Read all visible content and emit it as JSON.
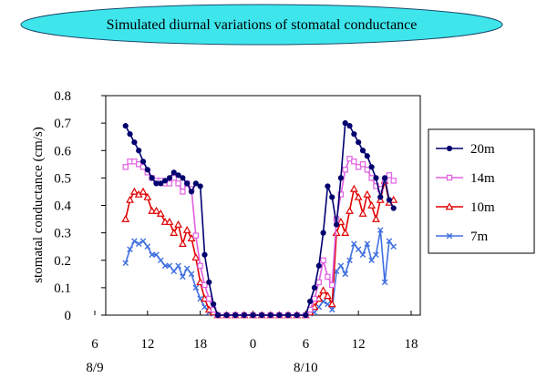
{
  "chart_data": {
    "type": "line",
    "title": "Simulated diurnal variations of stomatal conductance",
    "ylabel": "stomatal conductance  (cm/s)",
    "xlabel": "",
    "ylim": [
      0,
      0.8
    ],
    "yticks": [
      "0",
      "0.1",
      "0.2",
      "0.3",
      "0.4",
      "0.5",
      "0.6",
      "0.7",
      "0.8"
    ],
    "xlim": [
      6,
      42
    ],
    "xticks": [
      {
        "x": 6,
        "label": "6"
      },
      {
        "x": 12,
        "label": "12"
      },
      {
        "x": 18,
        "label": "18"
      },
      {
        "x": 24,
        "label": "0"
      },
      {
        "x": 30,
        "label": "6"
      },
      {
        "x": 36,
        "label": "12"
      },
      {
        "x": 42,
        "label": "18"
      }
    ],
    "date_labels": [
      {
        "x": 6,
        "label": "8/9"
      },
      {
        "x": 30,
        "label": "8/10"
      }
    ],
    "grid": false,
    "legend_position": "right",
    "series": [
      {
        "name": "20m",
        "color": "#00006e",
        "marker": "circle",
        "points": [
          [
            9.5,
            0.69
          ],
          [
            10,
            0.66
          ],
          [
            10.5,
            0.63
          ],
          [
            11,
            0.6
          ],
          [
            11.5,
            0.56
          ],
          [
            12,
            0.53
          ],
          [
            12.5,
            0.5
          ],
          [
            13,
            0.48
          ],
          [
            13.5,
            0.48
          ],
          [
            14,
            0.49
          ],
          [
            14.5,
            0.5
          ],
          [
            15,
            0.52
          ],
          [
            15.5,
            0.51
          ],
          [
            16,
            0.5
          ],
          [
            16.5,
            0.48
          ],
          [
            17,
            0.45
          ],
          [
            17.5,
            0.48
          ],
          [
            18,
            0.47
          ],
          [
            18.5,
            0.22
          ],
          [
            19,
            0.12
          ],
          [
            19.5,
            0.04
          ],
          [
            20,
            0
          ],
          [
            21,
            0
          ],
          [
            22,
            0
          ],
          [
            23,
            0
          ],
          [
            24,
            0
          ],
          [
            25,
            0
          ],
          [
            26,
            0
          ],
          [
            27,
            0
          ],
          [
            28,
            0
          ],
          [
            29,
            0
          ],
          [
            30,
            0
          ],
          [
            30.5,
            0.05
          ],
          [
            31,
            0.1
          ],
          [
            31.5,
            0.18
          ],
          [
            32,
            0.3
          ],
          [
            32.5,
            0.47
          ],
          [
            33,
            0.43
          ],
          [
            33.5,
            0.33
          ],
          [
            34,
            0.5
          ],
          [
            34.5,
            0.7
          ],
          [
            35,
            0.69
          ],
          [
            35.5,
            0.66
          ],
          [
            36,
            0.63
          ],
          [
            36.5,
            0.6
          ],
          [
            37,
            0.58
          ],
          [
            37.5,
            0.54
          ],
          [
            38,
            0.5
          ],
          [
            38.5,
            0.43
          ],
          [
            39,
            0.5
          ],
          [
            39.5,
            0.42
          ],
          [
            40,
            0.39
          ]
        ]
      },
      {
        "name": "14m",
        "color": "#e060e0",
        "marker": "square",
        "points": [
          [
            9.5,
            0.54
          ],
          [
            10,
            0.56
          ],
          [
            10.5,
            0.56
          ],
          [
            11,
            0.55
          ],
          [
            11.5,
            0.54
          ],
          [
            12,
            0.52
          ],
          [
            12.5,
            0.5
          ],
          [
            13,
            0.49
          ],
          [
            13.5,
            0.49
          ],
          [
            14,
            0.48
          ],
          [
            14.5,
            0.48
          ],
          [
            15,
            0.5
          ],
          [
            15.5,
            0.48
          ],
          [
            16,
            0.45
          ],
          [
            16.5,
            0.48
          ],
          [
            17,
            0.46
          ],
          [
            17.5,
            0.29
          ],
          [
            18,
            0.18
          ],
          [
            18.5,
            0.11
          ],
          [
            19,
            0.06
          ],
          [
            19.5,
            0.02
          ],
          [
            20,
            0
          ],
          [
            21,
            0
          ],
          [
            22,
            0
          ],
          [
            23,
            0
          ],
          [
            24,
            0
          ],
          [
            25,
            0
          ],
          [
            26,
            0
          ],
          [
            27,
            0
          ],
          [
            28,
            0
          ],
          [
            29,
            0
          ],
          [
            30,
            0
          ],
          [
            30.5,
            0.02
          ],
          [
            31,
            0.06
          ],
          [
            31.5,
            0.12
          ],
          [
            32,
            0.2
          ],
          [
            32.5,
            0.14
          ],
          [
            33,
            0.11
          ],
          [
            33.5,
            0.35
          ],
          [
            34,
            0.44
          ],
          [
            34.5,
            0.53
          ],
          [
            35,
            0.57
          ],
          [
            35.5,
            0.56
          ],
          [
            36,
            0.54
          ],
          [
            36.5,
            0.55
          ],
          [
            37,
            0.53
          ],
          [
            37.5,
            0.5
          ],
          [
            38,
            0.47
          ],
          [
            38.5,
            0.46
          ],
          [
            39,
            0.49
          ],
          [
            39.5,
            0.51
          ],
          [
            40,
            0.49
          ]
        ]
      },
      {
        "name": "10m",
        "color": "#e00000",
        "marker": "triangle",
        "points": [
          [
            9.5,
            0.35
          ],
          [
            10,
            0.42
          ],
          [
            10.5,
            0.45
          ],
          [
            11,
            0.44
          ],
          [
            11.5,
            0.45
          ],
          [
            12,
            0.43
          ],
          [
            12.5,
            0.38
          ],
          [
            13,
            0.38
          ],
          [
            13.5,
            0.37
          ],
          [
            14,
            0.34
          ],
          [
            14.5,
            0.34
          ],
          [
            15,
            0.3
          ],
          [
            15.5,
            0.33
          ],
          [
            16,
            0.26
          ],
          [
            16.5,
            0.31
          ],
          [
            17,
            0.28
          ],
          [
            17.5,
            0.21
          ],
          [
            18,
            0.12
          ],
          [
            18.5,
            0.06
          ],
          [
            19,
            0.02
          ],
          [
            19.5,
            0.01
          ],
          [
            20,
            0
          ],
          [
            21,
            0
          ],
          [
            22,
            0
          ],
          [
            23,
            0
          ],
          [
            24,
            0
          ],
          [
            25,
            0
          ],
          [
            26,
            0
          ],
          [
            27,
            0
          ],
          [
            28,
            0
          ],
          [
            29,
            0
          ],
          [
            30,
            0
          ],
          [
            30.5,
            0.01
          ],
          [
            31,
            0.03
          ],
          [
            31.5,
            0.06
          ],
          [
            32,
            0.09
          ],
          [
            32.5,
            0.07
          ],
          [
            33,
            0.04
          ],
          [
            33.5,
            0.3
          ],
          [
            34,
            0.34
          ],
          [
            34.5,
            0.3
          ],
          [
            35,
            0.38
          ],
          [
            35.5,
            0.46
          ],
          [
            36,
            0.43
          ],
          [
            36.5,
            0.37
          ],
          [
            37,
            0.44
          ],
          [
            37.5,
            0.4
          ],
          [
            38,
            0.35
          ],
          [
            38.5,
            0.42
          ],
          [
            39,
            0.49
          ],
          [
            39.5,
            0.41
          ],
          [
            40,
            0.42
          ]
        ]
      },
      {
        "name": "7m",
        "color": "#4070e0",
        "marker": "cross",
        "points": [
          [
            9.5,
            0.19
          ],
          [
            10,
            0.24
          ],
          [
            10.5,
            0.27
          ],
          [
            11,
            0.26
          ],
          [
            11.5,
            0.27
          ],
          [
            12,
            0.25
          ],
          [
            12.5,
            0.22
          ],
          [
            13,
            0.22
          ],
          [
            13.5,
            0.2
          ],
          [
            14,
            0.18
          ],
          [
            14.5,
            0.18
          ],
          [
            15,
            0.16
          ],
          [
            15.5,
            0.18
          ],
          [
            16,
            0.14
          ],
          [
            16.5,
            0.17
          ],
          [
            17,
            0.15
          ],
          [
            17.5,
            0.1
          ],
          [
            18,
            0.06
          ],
          [
            18.5,
            0.03
          ],
          [
            19,
            0.01
          ],
          [
            19.5,
            0.005
          ],
          [
            20,
            0
          ],
          [
            21,
            0
          ],
          [
            22,
            0
          ],
          [
            23,
            0
          ],
          [
            24,
            0
          ],
          [
            25,
            0
          ],
          [
            26,
            0
          ],
          [
            27,
            0
          ],
          [
            28,
            0
          ],
          [
            29,
            0
          ],
          [
            30,
            0
          ],
          [
            30.5,
            0.005
          ],
          [
            31,
            0.01
          ],
          [
            31.5,
            0.03
          ],
          [
            32,
            0.05
          ],
          [
            32.5,
            0.04
          ],
          [
            33,
            0.02
          ],
          [
            33.5,
            0.16
          ],
          [
            34,
            0.18
          ],
          [
            34.5,
            0.15
          ],
          [
            35,
            0.2
          ],
          [
            35.5,
            0.26
          ],
          [
            36,
            0.24
          ],
          [
            36.5,
            0.22
          ],
          [
            37,
            0.26
          ],
          [
            37.5,
            0.2
          ],
          [
            38,
            0.22
          ],
          [
            38.5,
            0.31
          ],
          [
            39,
            0.12
          ],
          [
            39.5,
            0.27
          ],
          [
            40,
            0.25
          ]
        ]
      }
    ]
  }
}
